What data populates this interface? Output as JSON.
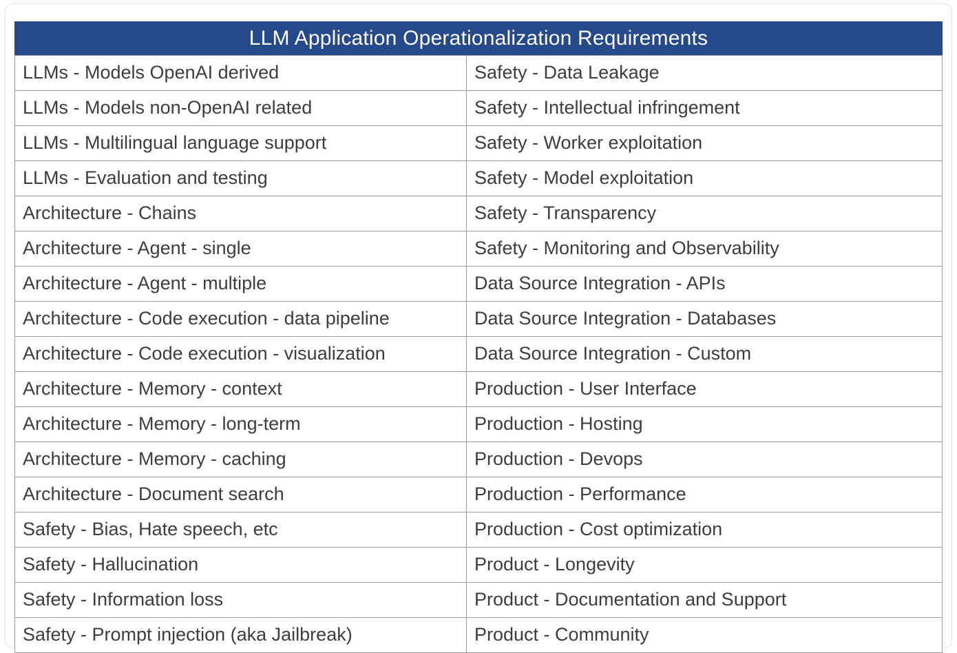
{
  "chart_data": {
    "type": "table",
    "title": "LLM Application Operationalization Requirements",
    "columns": [
      "left",
      "right"
    ],
    "rows": [
      [
        "LLMs - Models OpenAI derived",
        "Safety - Data Leakage"
      ],
      [
        "LLMs - Models non-OpenAI related",
        "Safety - Intellectual infringement"
      ],
      [
        "LLMs - Multilingual language support",
        "Safety - Worker exploitation"
      ],
      [
        "LLMs - Evaluation and testing",
        "Safety - Model exploitation"
      ],
      [
        "Architecture - Chains",
        "Safety - Transparency"
      ],
      [
        "Architecture - Agent - single",
        "Safety - Monitoring and Observability"
      ],
      [
        "Architecture - Agent - multiple",
        "Data Source Integration - APIs"
      ],
      [
        "Architecture - Code execution - data pipeline",
        "Data Source Integration - Databases"
      ],
      [
        "Architecture - Code execution - visualization",
        "Data Source Integration - Custom"
      ],
      [
        "Architecture - Memory - context",
        "Production - User Interface"
      ],
      [
        "Architecture - Memory - long-term",
        "Production - Hosting"
      ],
      [
        "Architecture - Memory - caching",
        "Production - Devops"
      ],
      [
        "Architecture - Document search",
        "Production - Performance"
      ],
      [
        "Safety - Bias, Hate speech, etc",
        "Production - Cost optimization"
      ],
      [
        "Safety - Hallucination",
        "Product - Longevity"
      ],
      [
        "Safety - Information loss",
        "Product - Documentation and Support"
      ],
      [
        "Safety - Prompt injection (aka Jailbreak)",
        "Product - Community"
      ]
    ],
    "layout": {
      "header_background": "#26498C",
      "header_text_color": "#ffffff",
      "cell_text_color": "#3d3d3d",
      "border_color": "#9b9b9b"
    }
  }
}
